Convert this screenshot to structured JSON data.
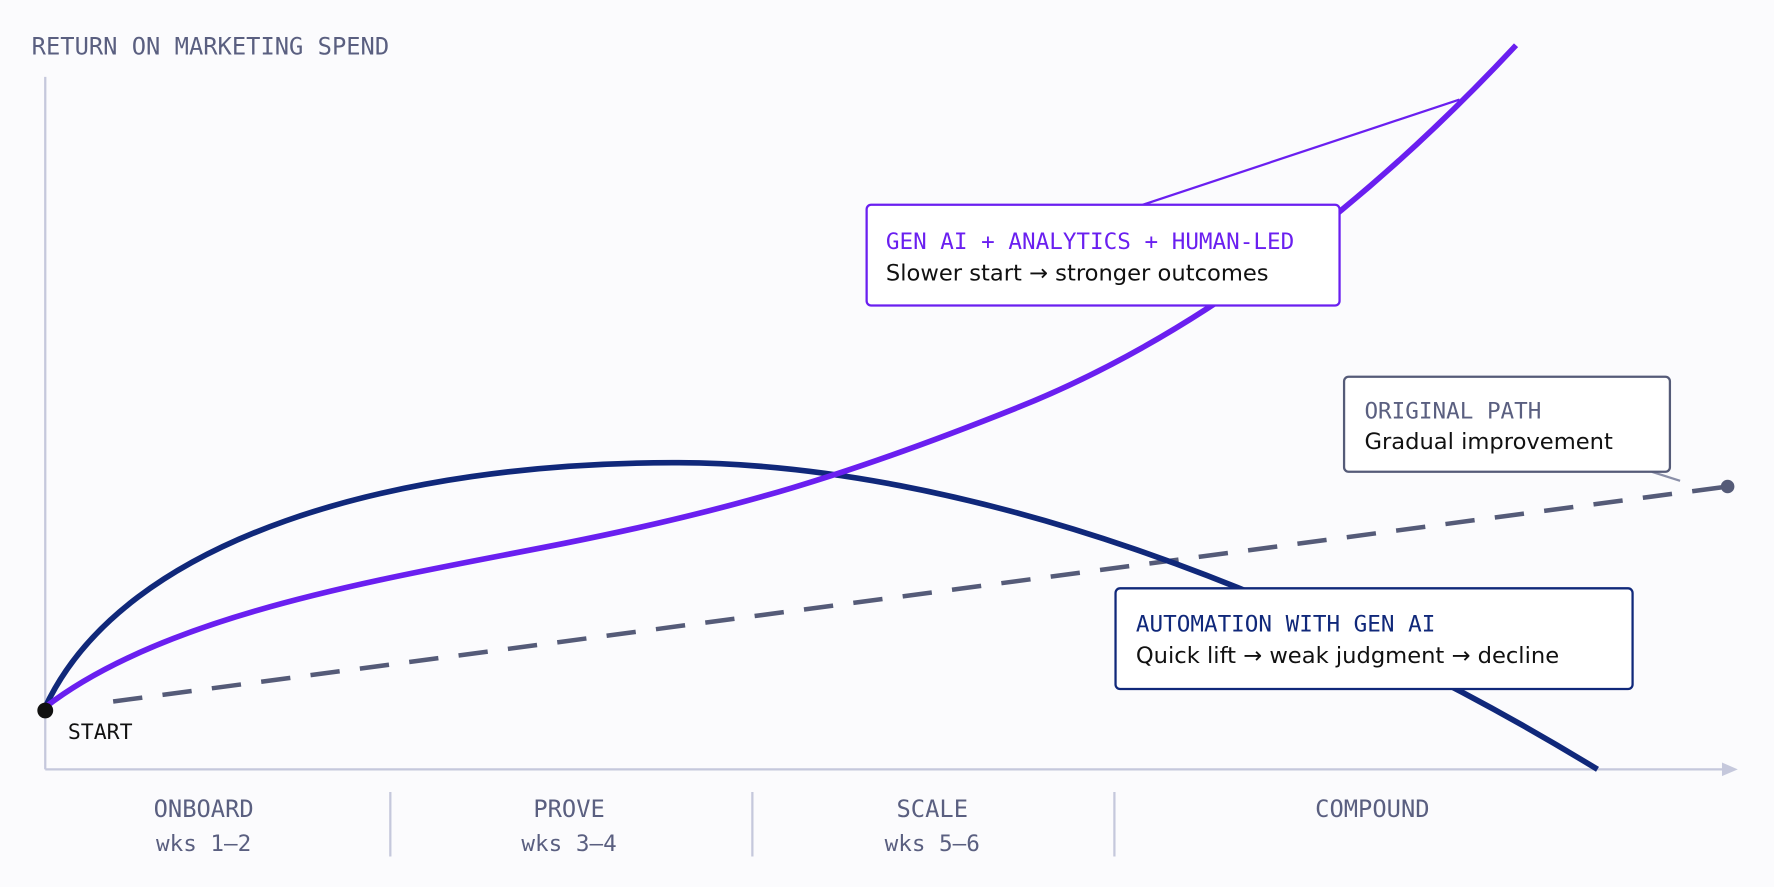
{
  "axis_title": "RETURN ON MARKETING SPEND",
  "start_label": "START",
  "callouts": [
    {
      "title": "GEN AI + ANALYTICS + HUMAN-LED",
      "text": "Slower start → stronger outcomes"
    },
    {
      "title": "ORIGINAL PATH",
      "text": "Gradual improvement"
    },
    {
      "title": "AUTOMATION WITH GEN AI",
      "text": "Quick lift → weak judgment → decline"
    }
  ],
  "phases": [
    {
      "name": "ONBOARD",
      "weeks": "wks 1–2"
    },
    {
      "name": "PROVE",
      "weeks": "wks 3–4"
    },
    {
      "name": "SCALE",
      "weeks": "wks 5–6"
    },
    {
      "name": "COMPOUND"
    }
  ]
}
